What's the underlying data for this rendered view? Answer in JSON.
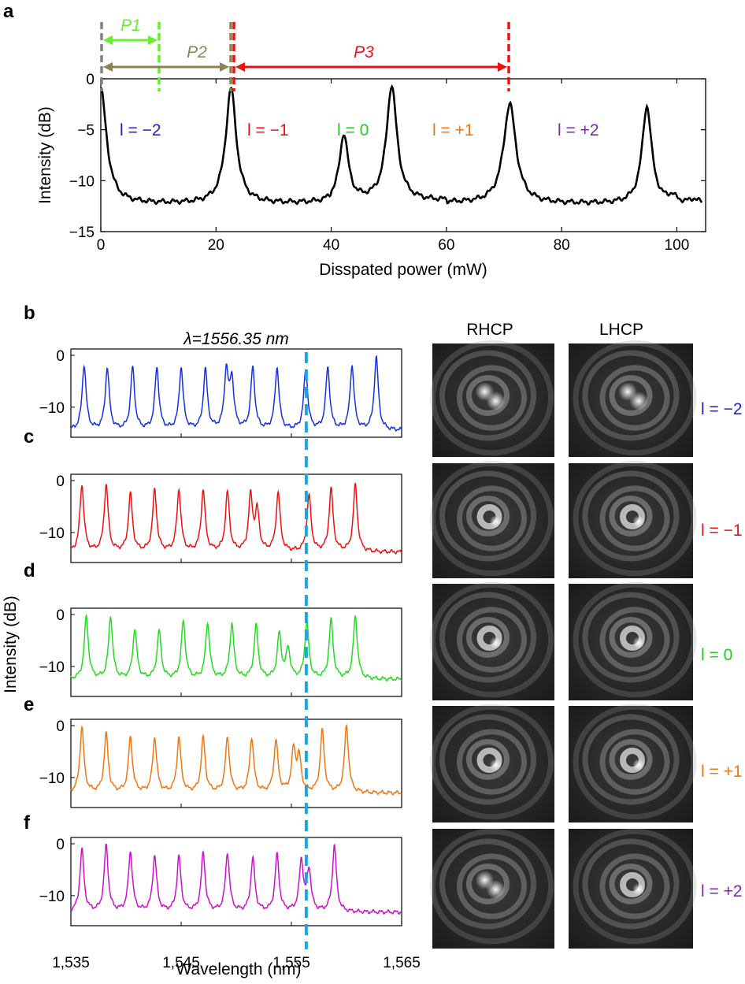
{
  "panels": {
    "a": "a",
    "b": "b",
    "c": "c",
    "d": "d",
    "e": "e",
    "f": "f"
  },
  "panel_a_labels": [
    {
      "text": "l = −2",
      "color": "#2020c8"
    },
    {
      "text": "l = −1",
      "color": "#ee1111"
    },
    {
      "text": "l = 0",
      "color": "#22cc22"
    },
    {
      "text": "l = +1",
      "color": "#ee7711"
    },
    {
      "text": "l = +2",
      "color": "#7a2aa8"
    }
  ],
  "p_arrows": [
    {
      "label": "P1",
      "from": 0,
      "to": 10,
      "color": "#66ee33"
    },
    {
      "label": "P2",
      "from": 0,
      "to": 22.5,
      "color": "#8c8450"
    },
    {
      "label": "P3",
      "from": 23,
      "to": 71,
      "color": "#ee1111"
    }
  ],
  "wavelength_marker": "λ=1556.35 nm",
  "column_headers": {
    "rhcp": "RHCP",
    "lhcp": "LHCP"
  },
  "mode_labels": [
    {
      "text": "l = −2",
      "color": "#2020c8"
    },
    {
      "text": "l = −1",
      "color": "#ee1111"
    },
    {
      "text": "l = 0",
      "color": "#22cc22"
    },
    {
      "text": "l = +1",
      "color": "#ee7711"
    },
    {
      "text": "l = +2",
      "color": "#7a2aa8"
    }
  ],
  "chart_data": [
    {
      "type": "line",
      "panel": "a",
      "xlabel": "Disspated power (mW)",
      "ylabel": "Intensity (dB)",
      "xlim": [
        0,
        105
      ],
      "ylim": [
        -15,
        0
      ],
      "xticks": [
        "0",
        "20",
        "40",
        "60",
        "80",
        "100"
      ],
      "yticks": [
        "0",
        "−5",
        "−10",
        "−15"
      ],
      "series": [
        {
          "color": "#000000",
          "baseline": -12.3,
          "peaks": [
            {
              "x": 0,
              "y": -1.0
            },
            {
              "x": 22.6,
              "y": -1.0
            },
            {
              "x": 42.2,
              "y": -5.8
            },
            {
              "x": 50.5,
              "y": -1.0
            },
            {
              "x": 71.0,
              "y": -2.5
            },
            {
              "x": 94.8,
              "y": -2.7
            }
          ]
        }
      ]
    },
    {
      "type": "line",
      "panels": [
        "b",
        "c",
        "d",
        "e",
        "f"
      ],
      "xlabel": "Wavelength (nm)",
      "ylabel": "Intensity (dB)",
      "xlim": [
        1535,
        1565
      ],
      "ylim": [
        -15,
        0
      ],
      "xticks": [
        "1,535",
        "1,545",
        "1,555",
        "1,565"
      ],
      "yticks": [
        "0",
        "−10"
      ],
      "marker_x": 1556.35,
      "series": [
        {
          "panel": "b",
          "color": "#1530e0",
          "baseline": -14.5,
          "peaks": [
            [
              1536.2,
              -2
            ],
            [
              1538.3,
              -2.6
            ],
            [
              1540.6,
              -2.6
            ],
            [
              1542.8,
              -2.6
            ],
            [
              1545.0,
              -2.6
            ],
            [
              1547.2,
              -3
            ],
            [
              1549.1,
              -3.5
            ],
            [
              1549.6,
              -5.2
            ],
            [
              1551.5,
              -2.6
            ],
            [
              1553.7,
              -2.6
            ],
            [
              1556.3,
              -3
            ],
            [
              1558.3,
              -2.6
            ],
            [
              1560.5,
              -2.2
            ],
            [
              1562.7,
              -0.5
            ]
          ]
        },
        {
          "panel": "c",
          "color": "#ee1111",
          "baseline": -13.8,
          "peaks": [
            [
              1536.0,
              -1.0
            ],
            [
              1538.2,
              -1.0
            ],
            [
              1540.4,
              -2.8
            ],
            [
              1542.6,
              -2.0
            ],
            [
              1544.8,
              -2.0
            ],
            [
              1547.0,
              -2.0
            ],
            [
              1549.2,
              -2.5
            ],
            [
              1551.3,
              -3.3
            ],
            [
              1551.9,
              -6.2
            ],
            [
              1553.8,
              -2.5
            ],
            [
              1556.6,
              -3.0
            ],
            [
              1558.6,
              -1.8
            ],
            [
              1560.8,
              -1.0
            ]
          ]
        },
        {
          "panel": "d",
          "color": "#22dd22",
          "baseline": -12.5,
          "peaks": [
            [
              1536.4,
              -0.5
            ],
            [
              1538.6,
              -0.5
            ],
            [
              1540.8,
              -3.0
            ],
            [
              1543.0,
              -3.3
            ],
            [
              1545.2,
              -1.5
            ],
            [
              1547.4,
              -1.8
            ],
            [
              1549.6,
              -2.0
            ],
            [
              1551.8,
              -2.3
            ],
            [
              1553.9,
              -4.0
            ],
            [
              1554.7,
              -6.8
            ],
            [
              1556.4,
              -1.8
            ],
            [
              1558.6,
              -1.2
            ],
            [
              1560.8,
              -0.5
            ]
          ]
        },
        {
          "panel": "e",
          "color": "#ee7711",
          "baseline": -13.0,
          "peaks": [
            [
              1536.0,
              -0.5
            ],
            [
              1538.2,
              -1.8
            ],
            [
              1540.4,
              -2.5
            ],
            [
              1542.6,
              -2.5
            ],
            [
              1544.8,
              -2.5
            ],
            [
              1547.0,
              -2.5
            ],
            [
              1549.2,
              -2.5
            ],
            [
              1551.4,
              -2.5
            ],
            [
              1553.6,
              -3.0
            ],
            [
              1555.2,
              -5.0
            ],
            [
              1555.7,
              -6.5
            ],
            [
              1557.8,
              -1.2
            ],
            [
              1560.0,
              -0.2
            ]
          ]
        },
        {
          "panel": "f",
          "color": "#cc11cc",
          "baseline": -13.2,
          "peaks": [
            [
              1536.0,
              -1.2
            ],
            [
              1538.2,
              -0.5
            ],
            [
              1540.4,
              -1.8
            ],
            [
              1542.6,
              -2.5
            ],
            [
              1544.8,
              -2.7
            ],
            [
              1547.0,
              -2.0
            ],
            [
              1549.2,
              -2.0
            ],
            [
              1551.5,
              -3.0
            ],
            [
              1553.7,
              -2.3
            ],
            [
              1555.9,
              -3.5
            ],
            [
              1556.6,
              -5.3
            ],
            [
              1558.9,
              -0.5
            ]
          ]
        }
      ]
    }
  ],
  "images": {
    "rows": 5,
    "columns": [
      "RHCP",
      "LHCP"
    ],
    "patterns": [
      [
        "double-core spiral",
        "double-core spiral"
      ],
      [
        "single-core spiral",
        "single-core spiral"
      ],
      [
        "single-core spiral",
        "single-core spiral"
      ],
      [
        "single-core spiral",
        "single-core spiral"
      ],
      [
        "double-core spiral",
        "single-core spiral"
      ]
    ]
  }
}
